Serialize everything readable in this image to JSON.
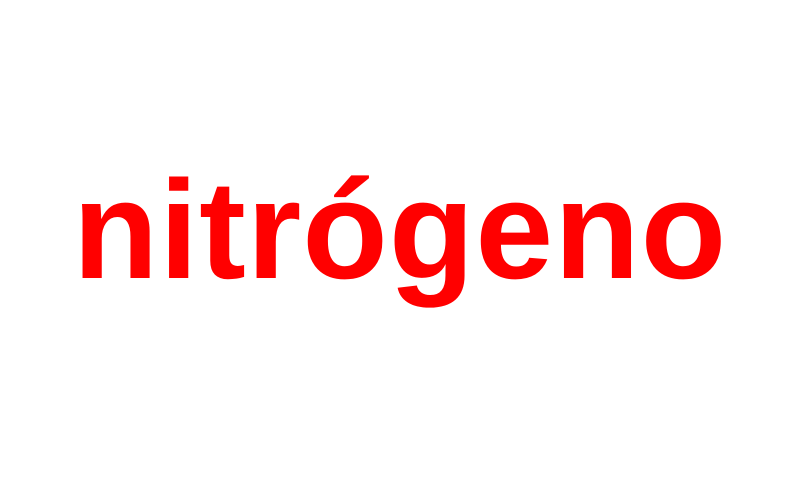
{
  "word": {
    "text": "nitrógeno",
    "color": "#ff0000"
  },
  "background_color": "#ffffff"
}
